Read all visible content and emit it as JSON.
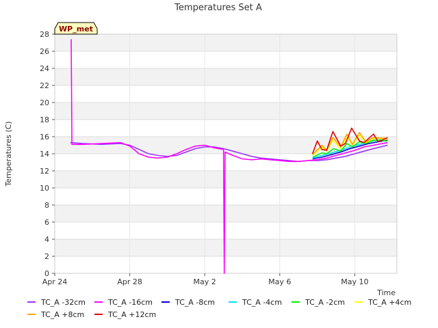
{
  "chart_data": {
    "type": "line",
    "title": "Temperatures Set A",
    "xlabel": "Time",
    "ylabel": "Temperatures (C)",
    "badge": "WP_met",
    "xlim": [
      "2023-04-24",
      "2023-05-12T06:00"
    ],
    "ylim": [
      0,
      28
    ],
    "x_ticks": [
      {
        "date": "2023-04-24",
        "label": "Apr 24"
      },
      {
        "date": "2023-04-28",
        "label": "Apr 28"
      },
      {
        "date": "2023-05-02",
        "label": "May 2"
      },
      {
        "date": "2023-05-06",
        "label": "May 6"
      },
      {
        "date": "2023-05-10",
        "label": "May 10"
      }
    ],
    "y_ticks": [
      0,
      2,
      4,
      6,
      8,
      10,
      12,
      14,
      16,
      18,
      20,
      22,
      24,
      26,
      28
    ],
    "grid": true,
    "legend_placement": "bottom",
    "series": [
      {
        "name": "TC_A -32cm",
        "color": "#9b30ff",
        "points": [
          [
            "2023-04-24T20:00",
            15.3
          ],
          [
            "2023-04-25T12:00",
            15.2
          ],
          [
            "2023-04-26T12:00",
            15.1
          ],
          [
            "2023-04-27T12:00",
            15.2
          ],
          [
            "2023-04-28T00:00",
            15.0
          ],
          [
            "2023-04-28T12:00",
            14.5
          ],
          [
            "2023-04-29T00:00",
            14.0
          ],
          [
            "2023-04-29T12:00",
            13.8
          ],
          [
            "2023-04-30T00:00",
            13.7
          ],
          [
            "2023-04-30T12:00",
            13.8
          ],
          [
            "2023-05-01T00:00",
            14.2
          ],
          [
            "2023-05-01T12:00",
            14.6
          ],
          [
            "2023-05-02T00:00",
            14.8
          ],
          [
            "2023-05-02T12:00",
            14.8
          ],
          [
            "2023-05-03T00:00",
            14.6
          ],
          [
            "2023-05-03T12:00",
            14.3
          ],
          [
            "2023-05-04T00:00",
            14.0
          ],
          [
            "2023-05-04T12:00",
            13.7
          ],
          [
            "2023-05-05T00:00",
            13.5
          ],
          [
            "2023-05-05T12:00",
            13.4
          ],
          [
            "2023-05-06T00:00",
            13.3
          ],
          [
            "2023-05-06T12:00",
            13.2
          ],
          [
            "2023-05-07T00:00",
            13.1
          ],
          [
            "2023-05-07T12:00",
            13.2
          ],
          [
            "2023-05-08T00:00",
            13.2
          ],
          [
            "2023-05-08T12:00",
            13.3
          ],
          [
            "2023-05-09T00:00",
            13.5
          ],
          [
            "2023-05-09T12:00",
            13.7
          ],
          [
            "2023-05-10T00:00",
            14.0
          ],
          [
            "2023-05-10T12:00",
            14.3
          ],
          [
            "2023-05-11T00:00",
            14.6
          ],
          [
            "2023-05-11T18:00",
            15.0
          ]
        ]
      },
      {
        "name": "TC_A -16cm",
        "color": "#ff00ff",
        "points": [
          [
            "2023-04-24T21:00",
            27.4
          ],
          [
            "2023-04-24T22:00",
            15.1
          ],
          [
            "2023-04-25T12:00",
            15.1
          ],
          [
            "2023-04-26T12:00",
            15.2
          ],
          [
            "2023-04-27T12:00",
            15.3
          ],
          [
            "2023-04-28T00:00",
            14.9
          ],
          [
            "2023-04-28T12:00",
            14.0
          ],
          [
            "2023-04-29T00:00",
            13.6
          ],
          [
            "2023-04-29T12:00",
            13.5
          ],
          [
            "2023-04-30T00:00",
            13.6
          ],
          [
            "2023-04-30T12:00",
            14.0
          ],
          [
            "2023-05-01T00:00",
            14.5
          ],
          [
            "2023-05-01T12:00",
            14.9
          ],
          [
            "2023-05-02T00:00",
            15.0
          ],
          [
            "2023-05-02T12:00",
            14.7
          ],
          [
            "2023-05-03T00:00",
            14.5
          ],
          [
            "2023-05-03T01:00",
            0.0
          ],
          [
            "2023-05-03T02:00",
            14.2
          ],
          [
            "2023-05-03T12:00",
            13.8
          ],
          [
            "2023-05-04T00:00",
            13.4
          ],
          [
            "2023-05-04T12:00",
            13.3
          ],
          [
            "2023-05-05T00:00",
            13.4
          ],
          [
            "2023-05-05T12:00",
            13.3
          ],
          [
            "2023-05-06T00:00",
            13.2
          ],
          [
            "2023-05-06T12:00",
            13.1
          ],
          [
            "2023-05-07T00:00",
            13.1
          ],
          [
            "2023-05-07T12:00",
            13.2
          ],
          [
            "2023-05-08T00:00",
            13.3
          ],
          [
            "2023-05-08T12:00",
            13.5
          ],
          [
            "2023-05-09T00:00",
            13.8
          ],
          [
            "2023-05-09T12:00",
            14.1
          ],
          [
            "2023-05-10T00:00",
            14.4
          ],
          [
            "2023-05-10T12:00",
            14.8
          ],
          [
            "2023-05-11T00:00",
            15.0
          ],
          [
            "2023-05-11T18:00",
            15.3
          ]
        ]
      },
      {
        "name": "TC_A -8cm",
        "color": "#0000cd",
        "points": [
          [
            "2023-05-07T18:00",
            13.4
          ],
          [
            "2023-05-08T06:00",
            13.6
          ],
          [
            "2023-05-08T18:00",
            13.9
          ],
          [
            "2023-05-09T06:00",
            14.2
          ],
          [
            "2023-05-09T18:00",
            14.6
          ],
          [
            "2023-05-10T06:00",
            14.9
          ],
          [
            "2023-05-10T18:00",
            15.2
          ],
          [
            "2023-05-11T06:00",
            15.4
          ],
          [
            "2023-05-11T18:00",
            15.6
          ]
        ]
      },
      {
        "name": "TC_A -4cm",
        "color": "#00e5ee",
        "points": [
          [
            "2023-05-07T18:00",
            13.5
          ],
          [
            "2023-05-08T06:00",
            13.8
          ],
          [
            "2023-05-08T18:00",
            14.1
          ],
          [
            "2023-05-09T06:00",
            14.4
          ],
          [
            "2023-05-09T18:00",
            14.8
          ],
          [
            "2023-05-10T06:00",
            15.1
          ],
          [
            "2023-05-10T18:00",
            15.4
          ],
          [
            "2023-05-11T06:00",
            15.6
          ],
          [
            "2023-05-11T18:00",
            15.8
          ]
        ]
      },
      {
        "name": "TC_A -2cm",
        "color": "#00ee00",
        "points": [
          [
            "2023-05-07T18:00",
            13.6
          ],
          [
            "2023-05-08T06:00",
            14.1
          ],
          [
            "2023-05-08T12:00",
            14.0
          ],
          [
            "2023-05-08T21:00",
            14.6
          ],
          [
            "2023-05-09T06:00",
            14.3
          ],
          [
            "2023-05-09T14:00",
            15.2
          ],
          [
            "2023-05-09T21:00",
            14.8
          ],
          [
            "2023-05-10T06:00",
            15.4
          ],
          [
            "2023-05-10T14:00",
            15.2
          ],
          [
            "2023-05-11T00:00",
            15.6
          ],
          [
            "2023-05-11T18:00",
            15.5
          ]
        ]
      },
      {
        "name": "TC_A +4cm",
        "color": "#ffff00",
        "points": [
          [
            "2023-05-07T18:00",
            13.8
          ],
          [
            "2023-05-08T06:00",
            14.8
          ],
          [
            "2023-05-08T12:00",
            14.3
          ],
          [
            "2023-05-08T20:00",
            15.6
          ],
          [
            "2023-05-09T06:00",
            14.6
          ],
          [
            "2023-05-09T14:00",
            16.0
          ],
          [
            "2023-05-09T21:00",
            15.0
          ],
          [
            "2023-05-10T06:00",
            16.2
          ],
          [
            "2023-05-10T14:00",
            15.3
          ],
          [
            "2023-05-11T00:00",
            15.8
          ],
          [
            "2023-05-11T18:00",
            15.7
          ]
        ]
      },
      {
        "name": "TC_A +8cm",
        "color": "#ffa500",
        "points": [
          [
            "2023-05-07T18:00",
            13.9
          ],
          [
            "2023-05-08T06:00",
            15.0
          ],
          [
            "2023-05-08T12:00",
            14.4
          ],
          [
            "2023-05-08T20:00",
            15.9
          ],
          [
            "2023-05-09T06:00",
            14.8
          ],
          [
            "2023-05-09T14:00",
            16.3
          ],
          [
            "2023-05-09T21:00",
            15.1
          ],
          [
            "2023-05-10T06:00",
            16.5
          ],
          [
            "2023-05-10T14:00",
            15.4
          ],
          [
            "2023-05-11T00:00",
            15.9
          ],
          [
            "2023-05-11T18:00",
            15.8
          ]
        ]
      },
      {
        "name": "TC_A +12cm",
        "color": "#e00000",
        "points": [
          [
            "2023-05-07T18:00",
            14.0
          ],
          [
            "2023-05-08T00:00",
            15.5
          ],
          [
            "2023-05-08T06:00",
            14.5
          ],
          [
            "2023-05-08T12:00",
            14.4
          ],
          [
            "2023-05-08T20:00",
            16.6
          ],
          [
            "2023-05-09T06:00",
            14.9
          ],
          [
            "2023-05-09T12:00",
            15.2
          ],
          [
            "2023-05-09T20:00",
            17.0
          ],
          [
            "2023-05-10T06:00",
            15.5
          ],
          [
            "2023-05-10T12:00",
            15.3
          ],
          [
            "2023-05-11T00:00",
            16.3
          ],
          [
            "2023-05-11T06:00",
            15.4
          ],
          [
            "2023-05-11T18:00",
            15.9
          ]
        ]
      }
    ]
  }
}
